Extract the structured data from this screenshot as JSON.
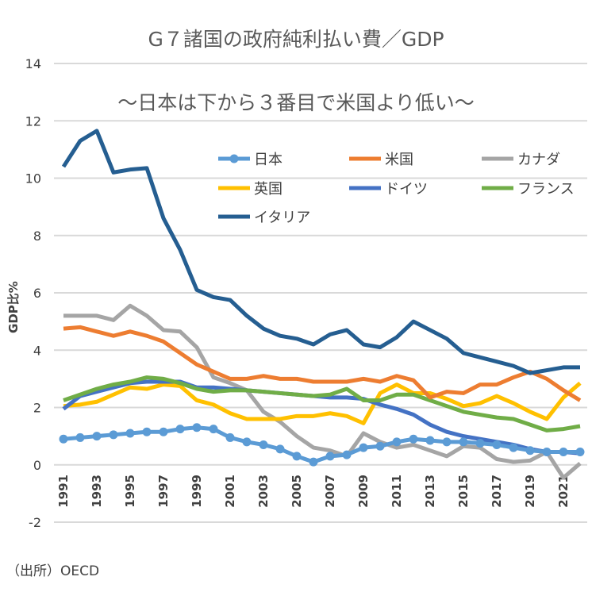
{
  "chart_data": {
    "type": "line",
    "title": "G７諸国の政府純利払い費／GDP",
    "subtitle": "～日本は下から３番目で米国より低い～",
    "ylabel": "GDP比%",
    "xlabel": "",
    "source": "（出所）OECD",
    "ylim": [
      -2,
      14
    ],
    "yticks": [
      -2,
      0,
      2,
      4,
      6,
      8,
      10,
      12,
      14
    ],
    "x": [
      1991,
      1992,
      1993,
      1994,
      1995,
      1996,
      1997,
      1998,
      1999,
      2000,
      2001,
      2002,
      2003,
      2004,
      2005,
      2006,
      2007,
      2008,
      2009,
      2010,
      2011,
      2012,
      2013,
      2014,
      2015,
      2016,
      2017,
      2018,
      2019,
      2020,
      2021,
      2022
    ],
    "xtick_labels": [
      "1991",
      "1993",
      "1995",
      "1997",
      "1999",
      "2001",
      "2003",
      "2005",
      "2007",
      "2009",
      "2011",
      "2013",
      "2015",
      "2017",
      "2019",
      "2021"
    ],
    "grid": true,
    "legend_placement": "top-right",
    "series": [
      {
        "name": "日本",
        "color": "#5B9BD5",
        "markers": true,
        "values": [
          0.9,
          0.95,
          1.0,
          1.05,
          1.1,
          1.15,
          1.15,
          1.25,
          1.3,
          1.25,
          0.95,
          0.8,
          0.7,
          0.55,
          0.3,
          0.1,
          0.3,
          0.35,
          0.6,
          0.65,
          0.8,
          0.9,
          0.85,
          0.8,
          0.8,
          0.75,
          0.7,
          0.6,
          0.5,
          0.45,
          0.45,
          0.45
        ]
      },
      {
        "name": "米国",
        "color": "#ED7D31",
        "values": [
          4.75,
          4.8,
          4.65,
          4.5,
          4.65,
          4.5,
          4.3,
          3.9,
          3.5,
          3.25,
          3.0,
          3.0,
          3.1,
          3.0,
          3.0,
          2.9,
          2.9,
          2.9,
          3.0,
          2.9,
          3.1,
          2.95,
          2.35,
          2.55,
          2.5,
          2.8,
          2.8,
          3.05,
          3.25,
          3.0,
          2.6,
          2.25
        ]
      },
      {
        "name": "カナダ",
        "color": "#A5A5A5",
        "values": [
          5.2,
          5.2,
          5.2,
          5.05,
          5.55,
          5.2,
          4.7,
          4.65,
          4.1,
          3.05,
          2.85,
          2.6,
          1.85,
          1.5,
          1.0,
          0.6,
          0.5,
          0.3,
          1.1,
          0.8,
          0.6,
          0.7,
          0.5,
          0.3,
          0.65,
          0.6,
          0.2,
          0.1,
          0.15,
          0.45,
          -0.45,
          0.05
        ]
      },
      {
        "name": "英国",
        "color": "#FFC000",
        "values": [
          2.05,
          2.1,
          2.2,
          2.45,
          2.7,
          2.65,
          2.8,
          2.75,
          2.25,
          2.1,
          1.8,
          1.6,
          1.6,
          1.6,
          1.7,
          1.7,
          1.8,
          1.7,
          1.45,
          2.5,
          2.8,
          2.5,
          2.5,
          2.3,
          2.05,
          2.15,
          2.4,
          2.15,
          1.85,
          1.6,
          2.35,
          2.85
        ]
      },
      {
        "name": "ドイツ",
        "color": "#4472C4",
        "values": [
          1.95,
          2.4,
          2.55,
          2.7,
          2.85,
          2.9,
          2.9,
          2.9,
          2.7,
          2.7,
          2.65,
          2.6,
          2.55,
          2.5,
          2.45,
          2.4,
          2.35,
          2.35,
          2.3,
          2.1,
          1.95,
          1.75,
          1.4,
          1.15,
          1.0,
          0.9,
          0.8,
          0.7,
          0.55,
          0.45,
          0.45,
          0.4
        ]
      },
      {
        "name": "フランス",
        "color": "#70AD47",
        "values": [
          2.25,
          2.45,
          2.65,
          2.8,
          2.9,
          3.05,
          3.0,
          2.85,
          2.65,
          2.55,
          2.6,
          2.6,
          2.55,
          2.5,
          2.45,
          2.4,
          2.45,
          2.65,
          2.25,
          2.25,
          2.45,
          2.45,
          2.25,
          2.05,
          1.85,
          1.75,
          1.65,
          1.6,
          1.4,
          1.2,
          1.25,
          1.35
        ]
      },
      {
        "name": "イタリア",
        "color": "#255E91",
        "values": [
          10.4,
          11.3,
          11.65,
          10.2,
          10.3,
          10.35,
          8.6,
          7.5,
          6.1,
          5.85,
          5.75,
          5.2,
          4.75,
          4.5,
          4.4,
          4.2,
          4.55,
          4.7,
          4.2,
          4.1,
          4.45,
          5.0,
          4.7,
          4.4,
          3.9,
          3.75,
          3.6,
          3.45,
          3.2,
          3.3,
          3.4,
          3.4
        ]
      }
    ]
  }
}
